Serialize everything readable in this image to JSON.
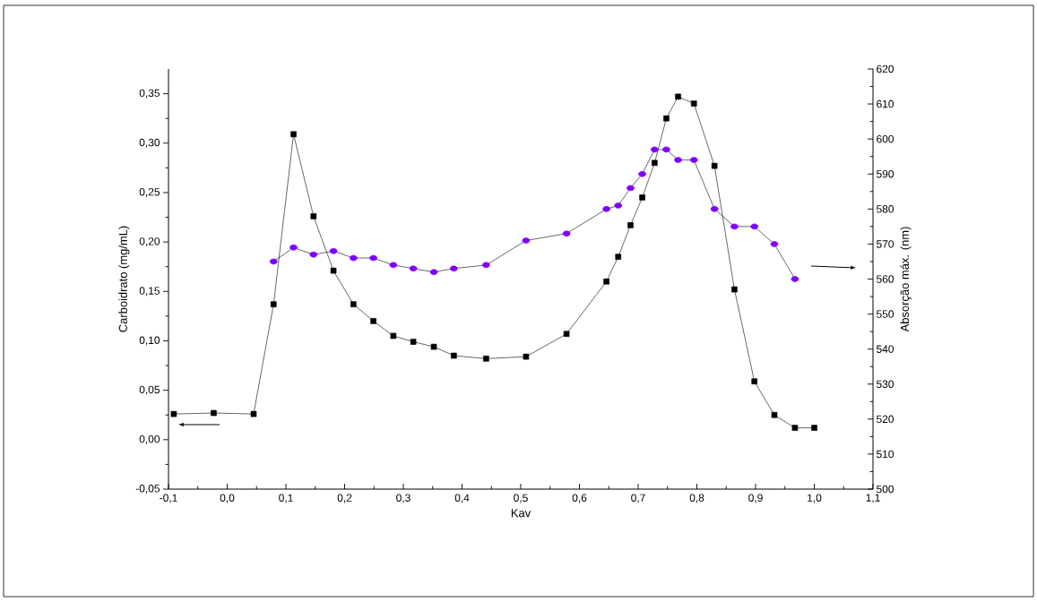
{
  "chart_data": {
    "type": "line",
    "xlabel": "Kav",
    "ylabel": "Carboidrato (mg/mL)",
    "y2label": "Absorção máx. (nm)",
    "series": [
      {
        "color": "#000000",
        "marker": "square",
        "x": [
          -0.091,
          -0.023,
          0.045,
          0.079,
          0.113,
          0.147,
          0.181,
          0.215,
          0.249,
          0.283,
          0.317,
          0.352,
          0.386,
          0.441,
          0.509,
          0.578,
          0.646,
          0.666,
          0.687,
          0.707,
          0.728,
          0.748,
          0.768,
          0.795,
          0.83,
          0.864,
          0.898,
          0.932,
          0.967,
          1.0
        ],
        "values": [
          0.026,
          0.027,
          0.026,
          0.137,
          0.309,
          0.226,
          0.171,
          0.137,
          0.12,
          0.105,
          0.099,
          0.094,
          0.085,
          0.082,
          0.084,
          0.107,
          0.16,
          0.185,
          0.217,
          0.245,
          0.28,
          0.325,
          0.347,
          0.34,
          0.277,
          0.152,
          0.059,
          0.025,
          0.012,
          0.012
        ]
      },
      {
        "color": "#8000ff",
        "marker": "circle",
        "axis": "y2",
        "x": [
          0.079,
          0.113,
          0.147,
          0.181,
          0.215,
          0.249,
          0.283,
          0.317,
          0.352,
          0.386,
          0.441,
          0.509,
          0.578,
          0.646,
          0.666,
          0.687,
          0.707,
          0.728,
          0.748,
          0.768,
          0.795,
          0.83,
          0.864,
          0.898,
          0.932,
          0.967
        ],
        "values": [
          565,
          569,
          567,
          568,
          566,
          566,
          564,
          563,
          562,
          563,
          564,
          571,
          573,
          580,
          581,
          586,
          590,
          597,
          597,
          594,
          594,
          580,
          575,
          575,
          570,
          560
        ]
      }
    ],
    "xlim": [
      -0.1,
      1.1
    ],
    "xticks": [
      {
        "value": -0.1,
        "label": "-0,1"
      },
      {
        "value": 0.0,
        "label": "0,0"
      },
      {
        "value": 0.1,
        "label": "0,1"
      },
      {
        "value": 0.2,
        "label": "0,2"
      },
      {
        "value": 0.3,
        "label": "0,3"
      },
      {
        "value": 0.4,
        "label": "0,4"
      },
      {
        "value": 0.5,
        "label": "0,5"
      },
      {
        "value": 0.6,
        "label": "0,6"
      },
      {
        "value": 0.7,
        "label": "0,7"
      },
      {
        "value": 0.8,
        "label": "0,8"
      },
      {
        "value": 0.9,
        "label": "0,9"
      },
      {
        "value": 1.0,
        "label": "1,0"
      },
      {
        "value": 1.1,
        "label": "1,1"
      }
    ],
    "ylim": [
      -0.05,
      0.375
    ],
    "yticks": [
      {
        "value": -0.05,
        "label": "-0,05"
      },
      {
        "value": 0.0,
        "label": "0,00"
      },
      {
        "value": 0.05,
        "label": "0,05"
      },
      {
        "value": 0.1,
        "label": "0,10"
      },
      {
        "value": 0.15,
        "label": "0,15"
      },
      {
        "value": 0.2,
        "label": "0,20"
      },
      {
        "value": 0.25,
        "label": "0,25"
      },
      {
        "value": 0.3,
        "label": "0,30"
      },
      {
        "value": 0.35,
        "label": "0,35"
      }
    ],
    "y2lim": [
      500,
      620
    ],
    "y2ticks": [
      500,
      510,
      520,
      530,
      540,
      550,
      560,
      570,
      580,
      590,
      600,
      610,
      620
    ],
    "grid": false,
    "legend": false
  }
}
